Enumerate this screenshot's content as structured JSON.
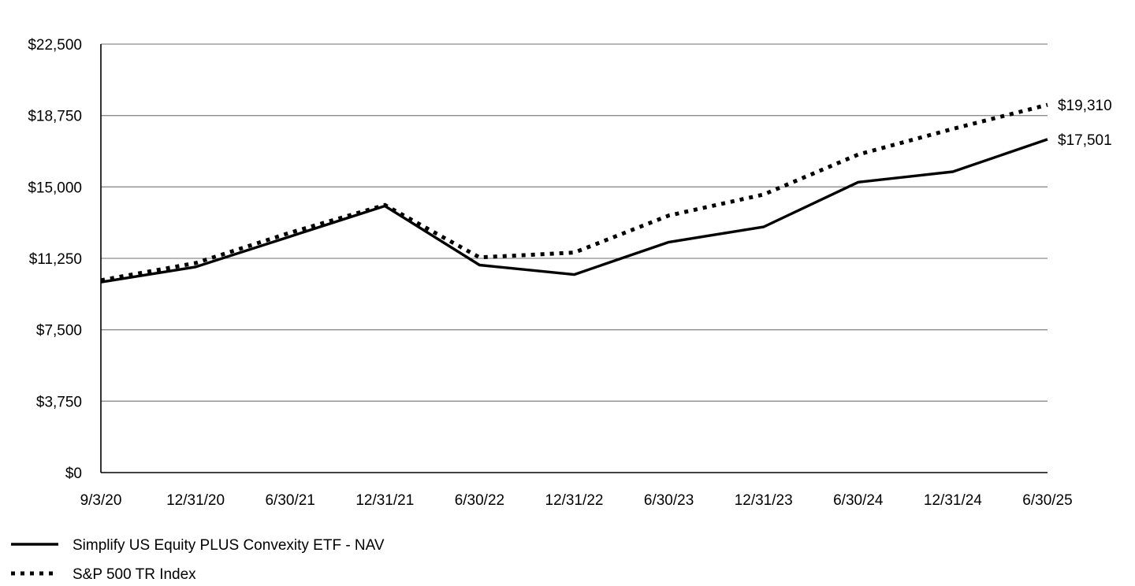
{
  "chart_data": {
    "type": "line",
    "title": "",
    "xlabel": "",
    "ylabel": "",
    "categories": [
      "9/3/20",
      "12/31/20",
      "6/30/21",
      "12/31/21",
      "6/30/22",
      "12/31/22",
      "6/30/23",
      "12/31/23",
      "6/30/24",
      "12/31/24",
      "6/30/25"
    ],
    "y_ticks": [
      0,
      3750,
      7500,
      11250,
      15000,
      18750,
      22500
    ],
    "y_tick_labels": [
      "$0",
      "$3,750",
      "$7,500",
      "$11,250",
      "$15,000",
      "$18,750",
      "$22,500"
    ],
    "ylim": [
      0,
      22500
    ],
    "grid": true,
    "legend_position": "bottom-left",
    "series": [
      {
        "name": "Simplify US Equity PLUS Convexity ETF - NAV",
        "style": "solid",
        "color": "#000000",
        "values": [
          10000,
          10800,
          12400,
          14000,
          10900,
          10400,
          12100,
          12900,
          15250,
          15800,
          17501
        ],
        "end_label": "$17,501"
      },
      {
        "name": "S&P 500 TR Index",
        "style": "dotted",
        "color": "#000000",
        "values": [
          10100,
          11000,
          12600,
          14050,
          11300,
          11550,
          13500,
          14600,
          16700,
          18050,
          19310
        ],
        "end_label": "$19,310"
      }
    ]
  }
}
